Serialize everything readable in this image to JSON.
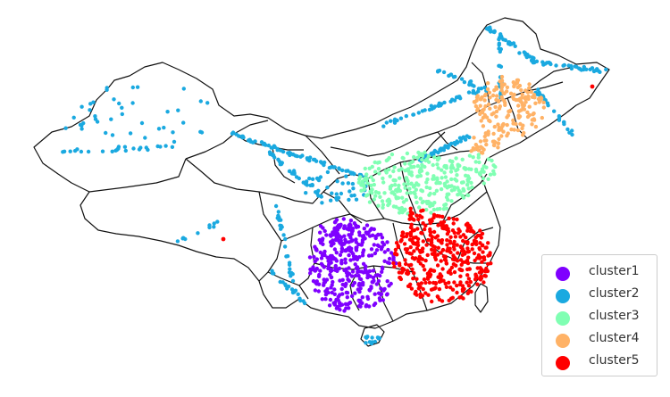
{
  "map": {
    "region": "China",
    "legend": [
      {
        "name": "cluster1",
        "color": "#7f00ff"
      },
      {
        "name": "cluster2",
        "color": "#1aa9e0"
      },
      {
        "name": "cluster3",
        "color": "#80ffb3"
      },
      {
        "name": "cluster4",
        "color": "#ffb266"
      },
      {
        "name": "cluster5",
        "color": "#ff0000"
      }
    ]
  }
}
